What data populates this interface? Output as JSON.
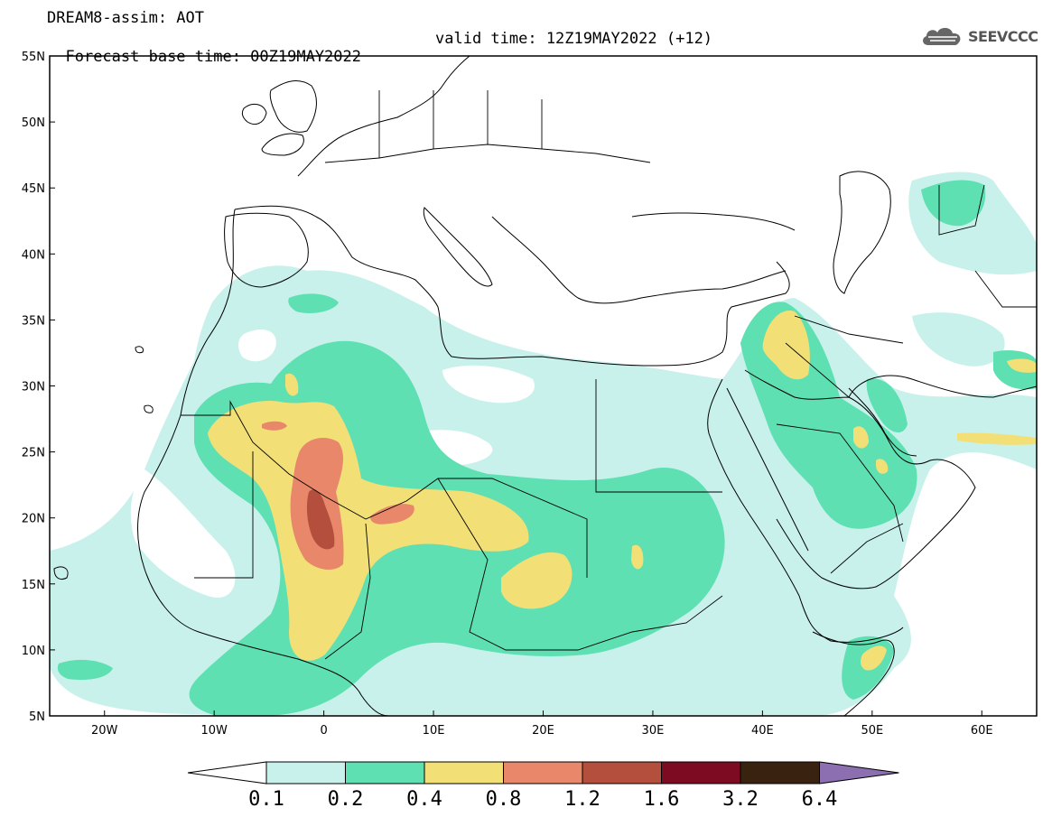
{
  "header": {
    "title_line1": "DREAM8-assim: AOT",
    "title_line2": "Forecast base time: 00Z19MAY2022",
    "valid_time": "valid time: 12Z19MAY2022 (+12)"
  },
  "logo": {
    "text": "SEEVCCC",
    "icon": "cloud-icon"
  },
  "map": {
    "lon_range": [
      -25,
      65
    ],
    "lat_range": [
      5,
      55
    ],
    "lat_labels": [
      "55N",
      "50N",
      "45N",
      "40N",
      "35N",
      "30N",
      "25N",
      "20N",
      "15N",
      "10N",
      "5N"
    ],
    "lon_labels": [
      "20W",
      "10W",
      "0",
      "10E",
      "20E",
      "30E",
      "40E",
      "50E",
      "60E"
    ],
    "shading_colors": [
      "#c8f1ec",
      "#5fe0b3",
      "#f2e077",
      "#e8876a",
      "#b44f3e",
      "#7d0c22",
      "#3a2211",
      "#8c6fb0"
    ]
  },
  "colorbar": {
    "labels": [
      "0.1",
      "0.2",
      "0.4",
      "0.8",
      "1.2",
      "1.6",
      "3.2",
      "6.4"
    ],
    "colors": [
      "#c8f1ec",
      "#5fe0b3",
      "#f2e077",
      "#e8876a",
      "#b44f3e",
      "#7d0c22",
      "#3a2211"
    ],
    "under_color": "#ffffff",
    "over_color": "#8c6fb0"
  }
}
